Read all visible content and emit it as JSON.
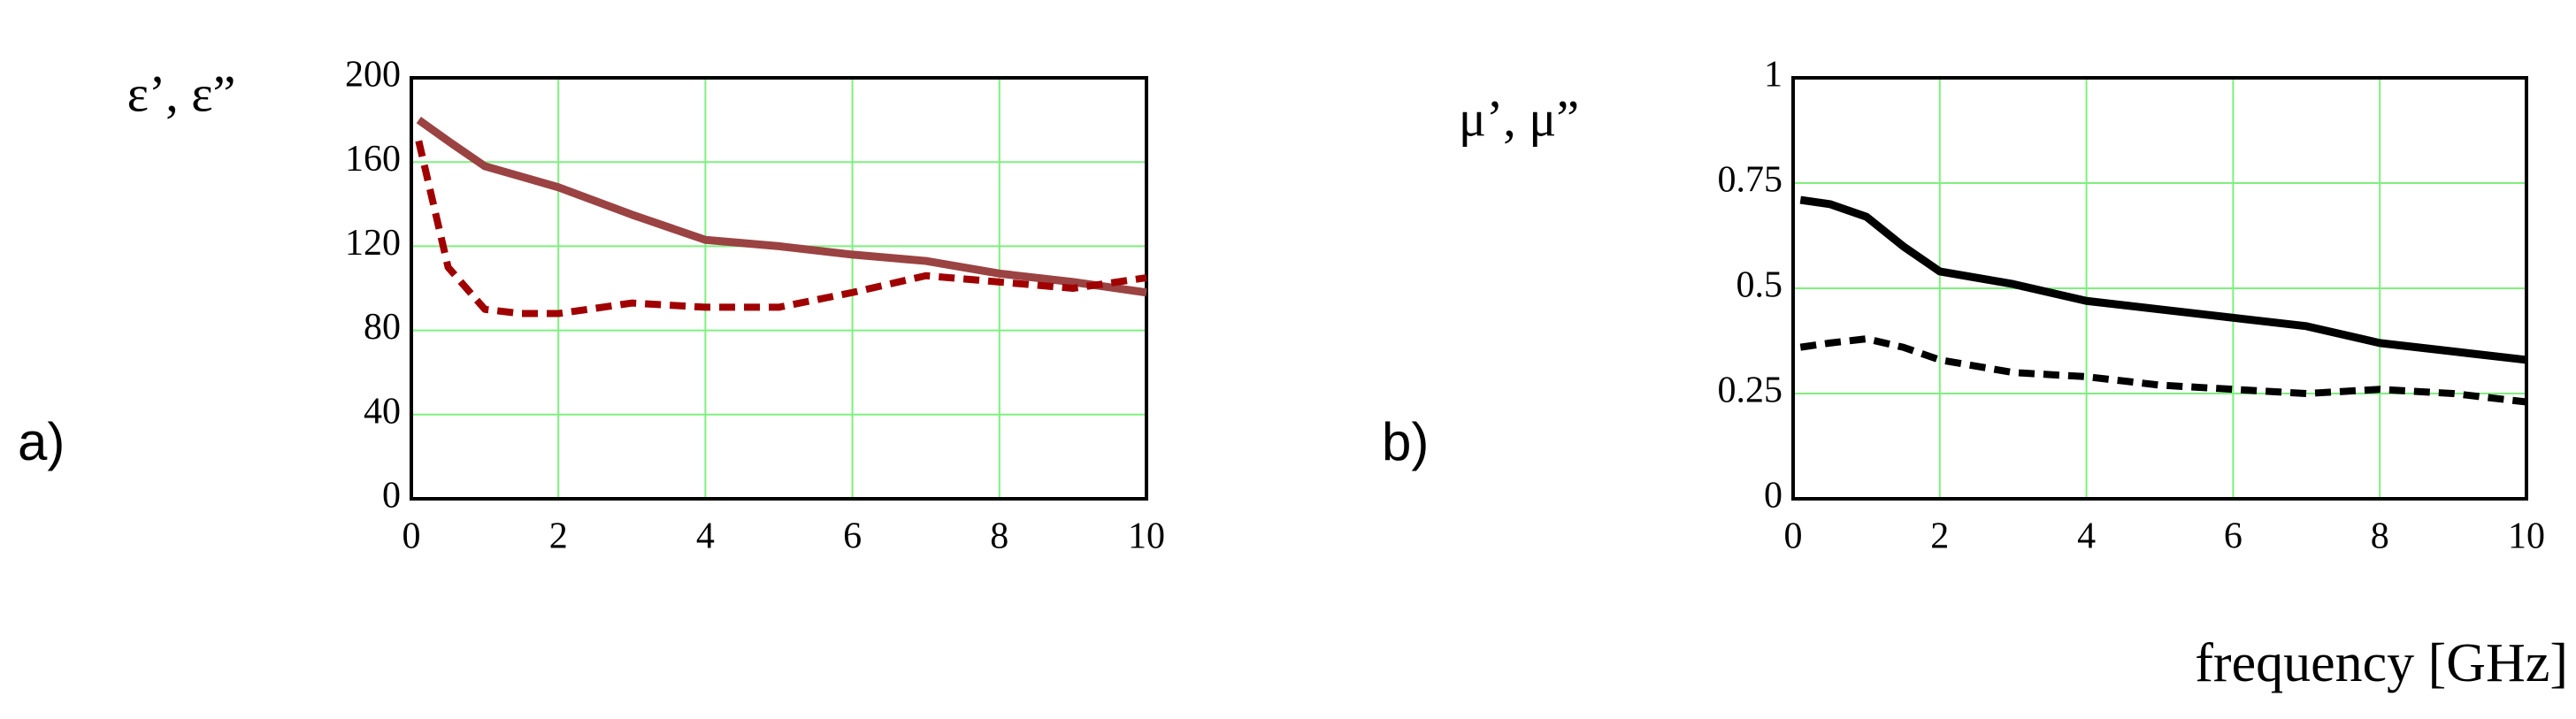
{
  "chart_data": [
    {
      "type": "line",
      "panel": "a)",
      "ylabel": "ε’, ε”",
      "x": [
        0.1,
        0.5,
        1,
        1.5,
        2,
        3,
        4,
        5,
        6,
        7,
        8,
        9,
        10
      ],
      "series": [
        {
          "color": "#9b4242",
          "style": "solid",
          "values": [
            180,
            170,
            158,
            153,
            148,
            135,
            123,
            120,
            116,
            113,
            107,
            103,
            98
          ]
        },
        {
          "color": "#a00000",
          "style": "dashed",
          "values": [
            170,
            110,
            90,
            88,
            88,
            93,
            91,
            91,
            98,
            106,
            103,
            100,
            105
          ]
        }
      ],
      "xlim": [
        0,
        10
      ],
      "xticks": [
        0,
        2,
        4,
        6,
        8,
        10
      ],
      "ylim": [
        0,
        200
      ],
      "yticks": [
        0,
        40,
        80,
        120,
        160,
        200
      ],
      "grid": true,
      "grid_color": "#7ef07e"
    },
    {
      "type": "line",
      "panel": "b)",
      "ylabel": "μ’, μ”",
      "xlabel": "frequency [GHz]",
      "x": [
        0.1,
        0.5,
        1,
        1.5,
        2,
        3,
        4,
        5,
        6,
        7,
        8,
        9,
        10
      ],
      "series": [
        {
          "color": "#000000",
          "style": "solid",
          "values": [
            0.71,
            0.7,
            0.67,
            0.6,
            0.54,
            0.51,
            0.47,
            0.45,
            0.43,
            0.41,
            0.37,
            0.35,
            0.33
          ]
        },
        {
          "color": "#000000",
          "style": "dashed",
          "values": [
            0.36,
            0.37,
            0.38,
            0.36,
            0.33,
            0.3,
            0.29,
            0.27,
            0.26,
            0.25,
            0.26,
            0.25,
            0.23
          ]
        }
      ],
      "xlim": [
        0,
        10
      ],
      "xticks": [
        0,
        2,
        4,
        6,
        8,
        10
      ],
      "ylim": [
        0,
        1
      ],
      "yticks": [
        0,
        0.25,
        0.5,
        0.75,
        1
      ],
      "grid": true,
      "grid_color": "#7ef07e"
    }
  ]
}
